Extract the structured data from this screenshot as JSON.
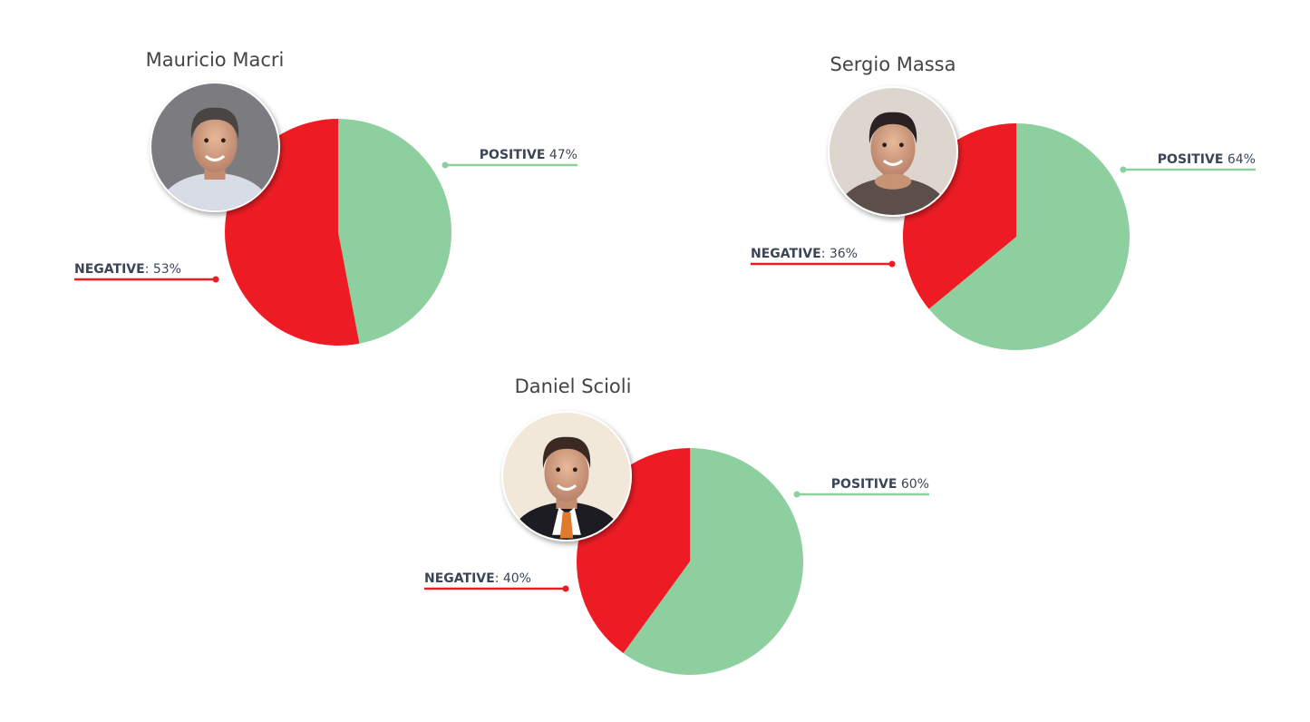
{
  "colors": {
    "positive": "#8dcf9e",
    "negative": "#ed1c24",
    "label_text": "#3a4558",
    "title_text": "#444444"
  },
  "chart_data": [
    {
      "type": "pie",
      "title": "Mauricio Macri",
      "avatar": "portrait-icon",
      "slices": [
        {
          "label": "POSITIVE",
          "value": 47,
          "display": "47%",
          "color": "#8dcf9e"
        },
        {
          "label": "NEGATIVE",
          "value": 53,
          "display": "53%",
          "color": "#ed1c24"
        }
      ]
    },
    {
      "type": "pie",
      "title": "Sergio Massa",
      "avatar": "portrait-icon",
      "slices": [
        {
          "label": "POSITIVE",
          "value": 64,
          "display": "64%",
          "color": "#8dcf9e"
        },
        {
          "label": "NEGATIVE",
          "value": 36,
          "display": "36%",
          "color": "#ed1c24"
        }
      ]
    },
    {
      "type": "pie",
      "title": "Daniel Scioli",
      "avatar": "portrait-icon",
      "slices": [
        {
          "label": "POSITIVE",
          "value": 60,
          "display": "60%",
          "color": "#8dcf9e"
        },
        {
          "label": "NEGATIVE",
          "value": 40,
          "display": "40%",
          "color": "#ed1c24"
        }
      ]
    }
  ]
}
